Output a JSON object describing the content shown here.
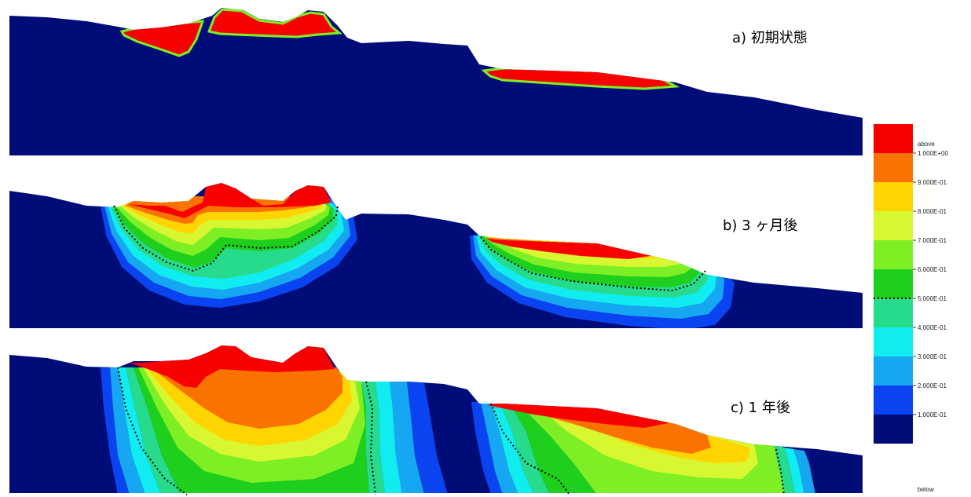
{
  "panels": [
    {
      "id": "a",
      "label": "a)  初期状態"
    },
    {
      "id": "b",
      "label": "b) 3 ヶ月後"
    },
    {
      "id": "c",
      "label": "c) 1 年後"
    }
  ],
  "legend": {
    "top_label": "above",
    "bottom_label": "below",
    "ticks": [
      "1.000E+00",
      "9.000E-01",
      "8.000E-01",
      "7.000E-01",
      "6.000E-01",
      "5.000E-01",
      "4.000E-01",
      "3.000E-01",
      "2.000E-01",
      "1.000E-01"
    ],
    "colors": [
      "#f80000",
      "#fa7300",
      "#ffd400",
      "#d8f731",
      "#7fef25",
      "#1ecf1e",
      "#26dc8c",
      "#10ecef",
      "#16a7f2",
      "#0a43f0",
      "#000d78"
    ],
    "threshold_tick": "5.000E-01"
  },
  "colors": {
    "ground": "#000d78",
    "dashed_contour": "#000000"
  }
}
